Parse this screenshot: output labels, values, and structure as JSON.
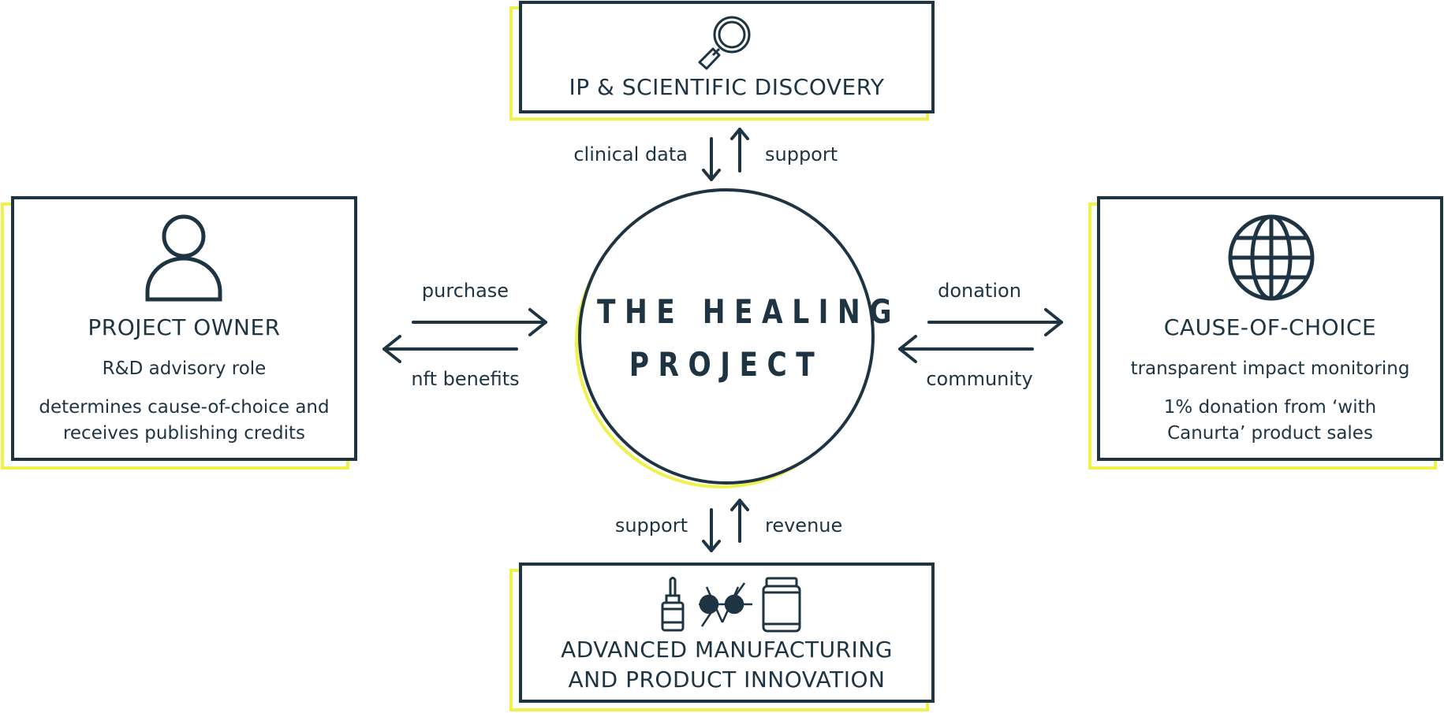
{
  "center": {
    "title_line1": "THE HEALING",
    "title_line2": "PROJECT"
  },
  "boxes": {
    "top": {
      "title": "IP & SCIENTIFIC DISCOVERY",
      "icon": "magnifying-glass-icon"
    },
    "left": {
      "title": "PROJECT OWNER",
      "line1": "R&D advisory role",
      "line2": "determines cause-of-choice and",
      "line3": "receives publishing credits",
      "icon": "person-icon"
    },
    "right": {
      "title": "CAUSE-OF-CHOICE",
      "line1": "transparent impact monitoring",
      "line2": "1% donation from ‘with",
      "line3": "Canurta’ product sales",
      "icon": "globe-icon"
    },
    "bottom": {
      "title_line1": "ADVANCED MANUFACTURING",
      "title_line2": "AND PRODUCT INNOVATION",
      "icons": [
        "dropper-bottle-icon",
        "molecule-icon",
        "jar-icon"
      ]
    }
  },
  "arrows": {
    "top_down_label": "clinical data",
    "top_up_label": "support",
    "left_right_label": "purchase",
    "left_left_label": "nft benefits",
    "right_right_label": "donation",
    "right_left_label": "community",
    "bottom_down_label": "support",
    "bottom_up_label": "revenue"
  },
  "colors": {
    "ink": "#1e3442",
    "accent": "#eef24a",
    "background": "#ffffff"
  }
}
